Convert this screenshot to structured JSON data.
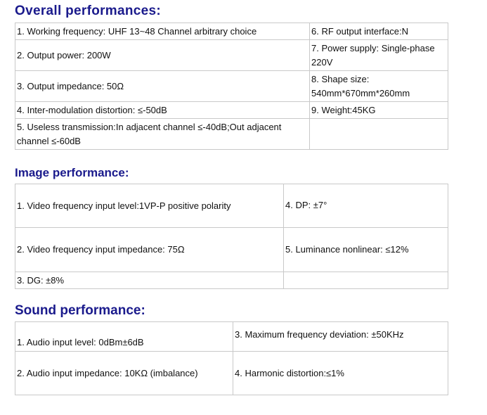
{
  "overall": {
    "title": "Overall performances:",
    "rows": [
      [
        "1. Working frequency: UHF 13~48 Channel arbitrary choice",
        "6. RF output interface:N"
      ],
      [
        "2. Output power: 200W",
        "7. Power supply: Single-phase 220V"
      ],
      [
        "3. Output impedance: 50Ω",
        "8. Shape size: 540mm*670mm*260mm"
      ],
      [
        "4. Inter-modulation distortion: ≤-50dB",
        "9. Weight:45KG"
      ],
      [
        "5. Useless transmission:In adjacent channel ≤-40dB;Out adjacent channel ≤-60dB",
        ""
      ]
    ]
  },
  "image": {
    "title": "Image performance:",
    "rows": [
      [
        "1. Video frequency input level:1VP-P positive polarity",
        "4. DP: ±7°"
      ],
      [
        "2. Video frequency input impedance: 75Ω",
        "5. Luminance nonlinear:   ≤12%"
      ],
      [
        "3. DG:  ±8%",
        ""
      ]
    ]
  },
  "sound": {
    "title": "Sound performance:",
    "rows": [
      [
        "1. Audio input level: 0dBm±6dB",
        "3. Maximum frequency deviation:   ±50KHz"
      ],
      [
        "2. Audio input impedance: 10KΩ (imbalance)",
        "4. Harmonic distortion:≤1%"
      ]
    ]
  }
}
